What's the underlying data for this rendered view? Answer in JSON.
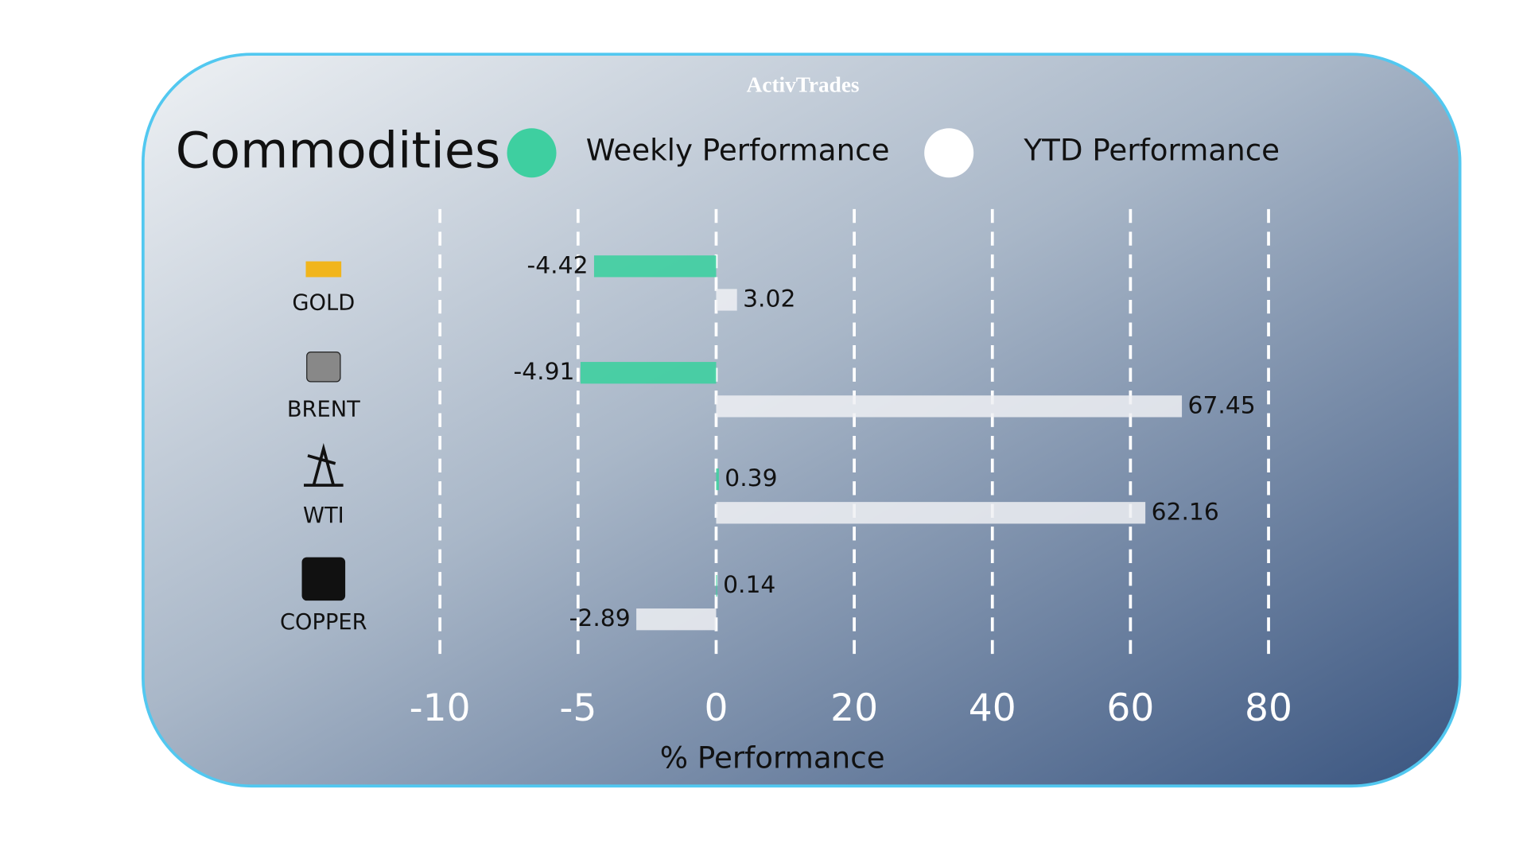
{
  "brand": "ActivTrades",
  "chart_data": {
    "type": "bar",
    "orientation": "horizontal",
    "title": "Commodities",
    "categories": [
      "GOLD",
      "BRENT",
      "WTI",
      "COPPER"
    ],
    "series": [
      {
        "name": "Weekly Performance",
        "color": "#3ecfa0",
        "values": [
          -4.42,
          -4.91,
          0.39,
          0.14
        ]
      },
      {
        "name": "YTD Performance",
        "color": "#eef0f3",
        "values": [
          3.02,
          67.45,
          62.16,
          -2.89
        ]
      }
    ],
    "xlim": [
      -10,
      80
    ],
    "xticks": [
      -10,
      -5,
      0,
      20,
      40,
      60,
      80
    ],
    "xlabel": "% Performance",
    "grid": true
  }
}
